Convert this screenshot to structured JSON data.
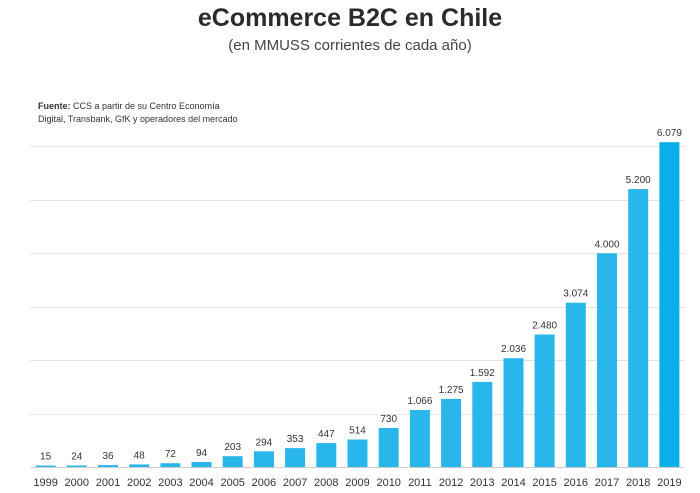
{
  "chart_data": {
    "type": "bar",
    "title": "eCommerce B2C en Chile",
    "subtitle": "(en MMUSS corrientes de cada año)",
    "source_label": "Fuente:",
    "source_text": "CCS a partir de su Centro Economía",
    "source_text2": "Digital, Transbank, GfK y operadores del mercado",
    "categories": [
      "1999",
      "2000",
      "2001",
      "2002",
      "2003",
      "2004",
      "2005",
      "2006",
      "2007",
      "2008",
      "2009",
      "2010",
      "2011",
      "2012",
      "2013",
      "2014",
      "2015",
      "2016",
      "2017",
      "2018",
      "2019"
    ],
    "values": [
      15,
      24,
      36,
      48,
      72,
      94,
      203,
      294,
      353,
      447,
      514,
      730,
      1066,
      1275,
      1592,
      2036,
      2480,
      3074,
      4000,
      5200,
      6079
    ],
    "value_labels": [
      "15",
      "24",
      "36",
      "48",
      "72",
      "94",
      "203",
      "294",
      "353",
      "447",
      "514",
      "730",
      "1.066",
      "1.275",
      "1.592",
      "2.036",
      "2.480",
      "3.074",
      "4.000",
      "5.200",
      "6.079"
    ],
    "ylim": [
      0,
      6400
    ],
    "grid": true,
    "bar_color": "#29b6ea",
    "last_bar_color": "#0aaee8"
  }
}
